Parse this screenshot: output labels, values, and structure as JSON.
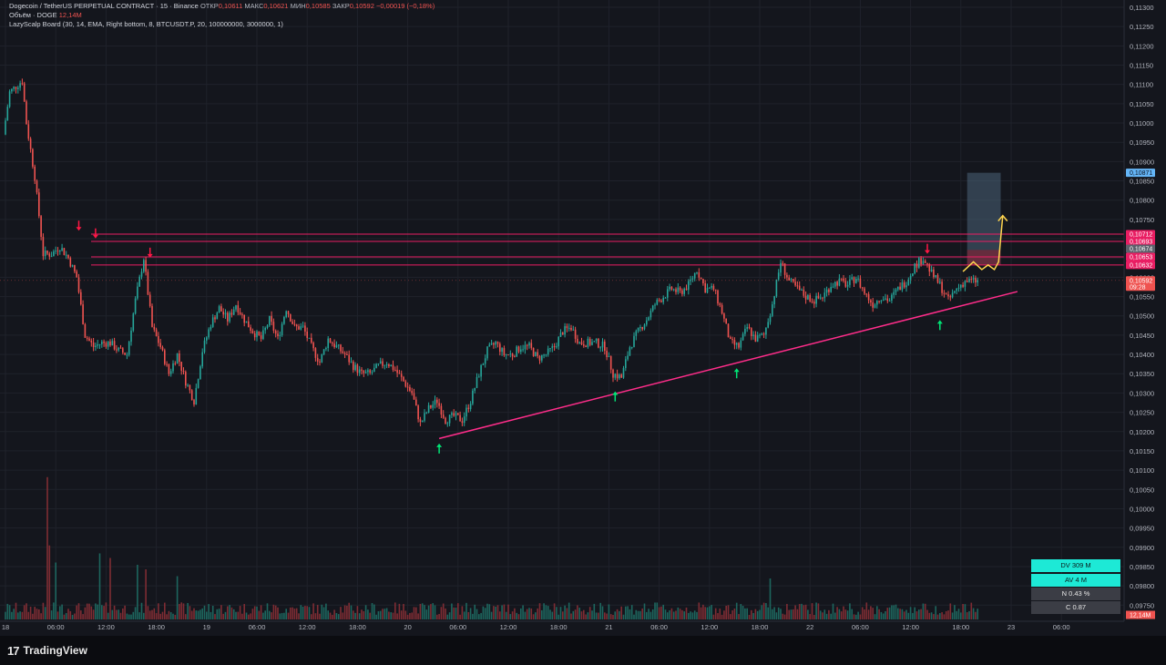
{
  "header": {
    "symbol": "Dogecoin / TetherUS PERPETUAL CONTRACT · 15 · Binance",
    "ohlc": [
      {
        "label": "ОТКР",
        "value": "0,10611"
      },
      {
        "label": "МАКС",
        "value": "0,10621"
      },
      {
        "label": "МИН",
        "value": "0,10585"
      },
      {
        "label": "ЗАКР",
        "value": "0,10592"
      }
    ],
    "change": "−0,00019 (−0,18%)",
    "volume_label": "Объём · DOGE",
    "volume_value": "12,14M",
    "indicator": "LazyScalp Board (30, 14, EMA, Right bottom, 8, BTCUSDT.P, 20, 100000000, 3000000, 1)"
  },
  "board": {
    "dv": "DV 309 M",
    "av": "AV 4 M",
    "n": "N 0.43 %",
    "c": "C 0.87"
  },
  "brand": {
    "logo": "17",
    "name": "TradingView"
  },
  "colors": {
    "background": "#14161d",
    "up": "#26a69a",
    "down": "#ef5350",
    "level_line": "#e91e63",
    "trend_line": "#ff2d8a",
    "projection": "#ffd54f",
    "arrow_down": "#ff1744",
    "arrow_up": "#00e676",
    "board_teal": "#1de9d6",
    "board_gray": "#3b3d45",
    "target_zone": "#4a6478"
  },
  "chart_data": {
    "type": "candlestick",
    "symbol": "DOGEUSDT.P",
    "timeframe": "15",
    "price_axis_ticks": [
      "0,11300",
      "0,11250",
      "0,11200",
      "0,11150",
      "0,11100",
      "0,11050",
      "0,11000",
      "0,10950",
      "0,10900",
      "0,10850",
      "0,10800",
      "0,10750",
      "0,10700",
      "0,10650",
      "0,10600",
      "0,10550",
      "0,10500",
      "0,10450",
      "0,10400",
      "0,10350",
      "0,10300",
      "0,10250",
      "0,10200",
      "0,10150",
      "0,10100",
      "0,10050",
      "0,10000",
      "0,09950",
      "0,09900",
      "0,09850",
      "0,09800",
      "0,09750"
    ],
    "ylim": [
      0.0972,
      0.113
    ],
    "time_axis_ticks": [
      {
        "label": "18",
        "t": 0
      },
      {
        "label": "06:00",
        "t": 24
      },
      {
        "label": "12:00",
        "t": 48
      },
      {
        "label": "18:00",
        "t": 72
      },
      {
        "label": "19",
        "t": 96
      },
      {
        "label": "06:00",
        "t": 120
      },
      {
        "label": "12:00",
        "t": 144
      },
      {
        "label": "18:00",
        "t": 168
      },
      {
        "label": "20",
        "t": 192
      },
      {
        "label": "06:00",
        "t": 216
      },
      {
        "label": "12:00",
        "t": 240
      },
      {
        "label": "18:00",
        "t": 264
      },
      {
        "label": "21",
        "t": 288
      },
      {
        "label": "06:00",
        "t": 312
      },
      {
        "label": "12:00",
        "t": 336
      },
      {
        "label": "18:00",
        "t": 360
      },
      {
        "label": "22",
        "t": 384
      },
      {
        "label": "06:00",
        "t": 408
      },
      {
        "label": "12:00",
        "t": 432
      },
      {
        "label": "18:00",
        "t": 456
      },
      {
        "label": "23",
        "t": 480
      },
      {
        "label": "06:00",
        "t": 504
      }
    ],
    "bar_count": 465,
    "price_path": [
      [
        0,
        0.1097
      ],
      [
        3,
        0.1108
      ],
      [
        7,
        0.111
      ],
      [
        9,
        0.1111
      ],
      [
        11,
        0.11
      ],
      [
        15,
        0.1086
      ],
      [
        19,
        0.1066
      ],
      [
        23,
        0.1066
      ],
      [
        27,
        0.1068
      ],
      [
        31,
        0.1065
      ],
      [
        35,
        0.106
      ],
      [
        39,
        0.1045
      ],
      [
        43,
        0.1042
      ],
      [
        47,
        0.1043
      ],
      [
        51,
        0.1043
      ],
      [
        55,
        0.1041
      ],
      [
        59,
        0.104
      ],
      [
        63,
        0.1054
      ],
      [
        67,
        0.1065
      ],
      [
        71,
        0.1047
      ],
      [
        75,
        0.1042
      ],
      [
        79,
        0.1035
      ],
      [
        83,
        0.104
      ],
      [
        87,
        0.1033
      ],
      [
        91,
        0.1028
      ],
      [
        95,
        0.1041
      ],
      [
        99,
        0.1048
      ],
      [
        103,
        0.1052
      ],
      [
        107,
        0.1049
      ],
      [
        111,
        0.1053
      ],
      [
        115,
        0.1049
      ],
      [
        119,
        0.1046
      ],
      [
        123,
        0.1044
      ],
      [
        127,
        0.1049
      ],
      [
        131,
        0.1044
      ],
      [
        135,
        0.1052
      ],
      [
        139,
        0.1047
      ],
      [
        143,
        0.1047
      ],
      [
        147,
        0.1042
      ],
      [
        151,
        0.1038
      ],
      [
        155,
        0.1044
      ],
      [
        159,
        0.1042
      ],
      [
        163,
        0.104
      ],
      [
        167,
        0.1037
      ],
      [
        171,
        0.1035
      ],
      [
        175,
        0.1035
      ],
      [
        179,
        0.1037
      ],
      [
        183,
        0.1038
      ],
      [
        187,
        0.1036
      ],
      [
        191,
        0.1033
      ],
      [
        195,
        0.103
      ],
      [
        199,
        0.1022
      ],
      [
        203,
        0.1026
      ],
      [
        207,
        0.1028
      ],
      [
        211,
        0.1023
      ],
      [
        215,
        0.1024
      ],
      [
        219,
        0.1023
      ],
      [
        223,
        0.1028
      ],
      [
        227,
        0.1035
      ],
      [
        231,
        0.1041
      ],
      [
        235,
        0.1043
      ],
      [
        239,
        0.104
      ],
      [
        243,
        0.104
      ],
      [
        247,
        0.1042
      ],
      [
        251,
        0.1042
      ],
      [
        255,
        0.1039
      ],
      [
        259,
        0.104
      ],
      [
        263,
        0.1042
      ],
      [
        267,
        0.1046
      ],
      [
        271,
        0.1047
      ],
      [
        275,
        0.1043
      ],
      [
        279,
        0.1043
      ],
      [
        283,
        0.1043
      ],
      [
        287,
        0.1042
      ],
      [
        291,
        0.1035
      ],
      [
        295,
        0.1034
      ],
      [
        299,
        0.1042
      ],
      [
        303,
        0.1046
      ],
      [
        307,
        0.1049
      ],
      [
        311,
        0.1053
      ],
      [
        315,
        0.1055
      ],
      [
        319,
        0.1057
      ],
      [
        323,
        0.1056
      ],
      [
        327,
        0.1058
      ],
      [
        331,
        0.1062
      ],
      [
        335,
        0.1057
      ],
      [
        339,
        0.1057
      ],
      [
        343,
        0.1051
      ],
      [
        347,
        0.1043
      ],
      [
        351,
        0.1042
      ],
      [
        355,
        0.1047
      ],
      [
        359,
        0.1044
      ],
      [
        363,
        0.1045
      ],
      [
        367,
        0.1053
      ],
      [
        371,
        0.1064
      ],
      [
        375,
        0.1059
      ],
      [
        379,
        0.1057
      ],
      [
        383,
        0.1055
      ],
      [
        387,
        0.1054
      ],
      [
        391,
        0.1055
      ],
      [
        395,
        0.1058
      ],
      [
        399,
        0.1059
      ],
      [
        403,
        0.1058
      ],
      [
        407,
        0.106
      ],
      [
        411,
        0.1056
      ],
      [
        415,
        0.1053
      ],
      [
        419,
        0.1055
      ],
      [
        423,
        0.1054
      ],
      [
        427,
        0.1057
      ],
      [
        431,
        0.1059
      ],
      [
        435,
        0.1063
      ],
      [
        439,
        0.1065
      ],
      [
        443,
        0.1061
      ],
      [
        447,
        0.1058
      ],
      [
        451,
        0.1054
      ],
      [
        455,
        0.1057
      ],
      [
        459,
        0.1059
      ],
      [
        463,
        0.1059
      ]
    ],
    "volume_spikes": [
      {
        "t": 20,
        "value": 12.5
      },
      {
        "t": 21,
        "value": 6.5
      },
      {
        "t": 24,
        "value": 5.0
      },
      {
        "t": 45,
        "value": 5.8
      },
      {
        "t": 50,
        "value": 5.4
      },
      {
        "t": 63,
        "value": 4.8
      },
      {
        "t": 67,
        "value": 4.4
      },
      {
        "t": 82,
        "value": 3.8
      },
      {
        "t": 365,
        "value": 3.6
      }
    ],
    "volume_scale_max": 14,
    "volume_last_label": "12,14M",
    "horizontal_levels": [
      {
        "price": 0.10712,
        "label": "0,10712"
      },
      {
        "price": 0.10693,
        "label": "0,10693"
      },
      {
        "price": 0.10653,
        "label": "0,10653"
      },
      {
        "price": 0.10632,
        "label": "0,10632"
      }
    ],
    "price_labels": [
      {
        "price": 0.10871,
        "label": "0,10871",
        "style": "target"
      },
      {
        "price": 0.10674,
        "label": "0,10674",
        "style": "gray"
      },
      {
        "price": 0.10592,
        "label": "0,10592",
        "sub": "09:28",
        "style": "current"
      }
    ],
    "trend_line": {
      "t1": 207,
      "p1": 0.10182,
      "t2": 483,
      "p2": 0.10563
    },
    "position_box": {
      "t1": 459,
      "t2": 475,
      "entry": 0.10632,
      "stop": 0.10671,
      "target": 0.10871
    },
    "projection_path": [
      [
        457,
        0.10615
      ],
      [
        462,
        0.1064
      ],
      [
        466,
        0.1062
      ],
      [
        469,
        0.10632
      ],
      [
        472,
        0.1062
      ],
      [
        474,
        0.1064
      ],
      [
        476,
        0.1076
      ]
    ],
    "arrows": [
      {
        "t": 35,
        "price": 0.10735,
        "dir": "down"
      },
      {
        "t": 43,
        "price": 0.10715,
        "dir": "down"
      },
      {
        "t": 69,
        "price": 0.10665,
        "dir": "down"
      },
      {
        "t": 440,
        "price": 0.10675,
        "dir": "down"
      },
      {
        "t": 207,
        "price": 0.10155,
        "dir": "up"
      },
      {
        "t": 291,
        "price": 0.1029,
        "dir": "up"
      },
      {
        "t": 349,
        "price": 0.1035,
        "dir": "up"
      },
      {
        "t": 446,
        "price": 0.10475,
        "dir": "up"
      }
    ],
    "grid": true
  }
}
